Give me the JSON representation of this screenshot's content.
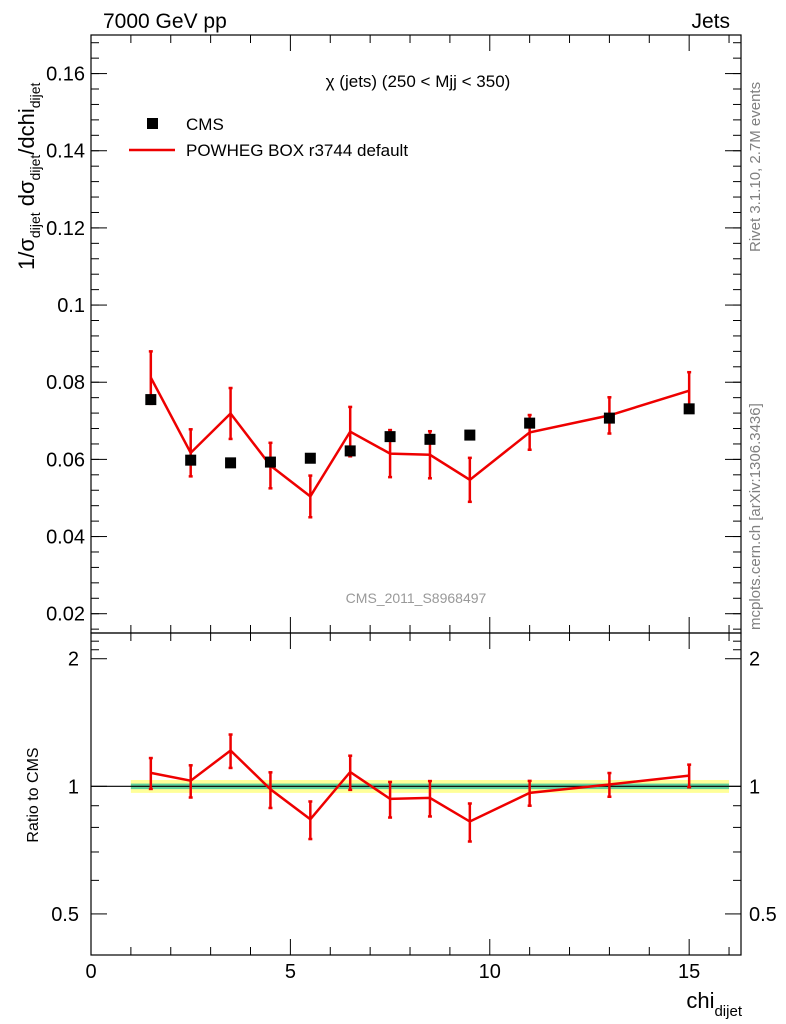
{
  "header": {
    "left": "7000 GeV pp",
    "right": "Jets"
  },
  "side_labels": {
    "rivet": "Rivet 3.1.10,  2.7M events",
    "mcplots": "mcplots.cern.ch [arXiv:1306.3436]"
  },
  "watermark": "CMS_2011_S8968497",
  "colors": {
    "data": "#000000",
    "mc": "#ee0000",
    "band_inner": "#5fd19c",
    "band_outer": "#ffff99"
  },
  "chart_data": [
    {
      "type": "scatter",
      "title": "χ (jets) (250 < Mjj <  350)",
      "ylabel_main": "1/σ",
      "ylabel_sub1": "dijet",
      "ylabel_mid": " dσ",
      "ylabel_sub2": "dijet",
      "ylabel_mid2": "/dchi",
      "ylabel_sub3": "dijet",
      "xlim": [
        0,
        16.3
      ],
      "ylim": [
        0.015,
        0.17
      ],
      "yticks": [
        0.02,
        0.04,
        0.06,
        0.08,
        0.1,
        0.12,
        0.14,
        0.16
      ],
      "ytick_labels": [
        "0.02",
        "0.04",
        "0.06",
        "0.08",
        "0.1",
        "0.12",
        "0.14",
        "0.16"
      ],
      "legend": {
        "position": "top-left",
        "entries": [
          "CMS",
          "POWHEG BOX r3744 default"
        ]
      },
      "series": [
        {
          "name": "CMS",
          "x": [
            1.5,
            2.5,
            3.5,
            4.5,
            5.5,
            6.5,
            7.5,
            8.5,
            9.5,
            11,
            13,
            15
          ],
          "y": [
            0.0755,
            0.0598,
            0.0591,
            0.0593,
            0.0603,
            0.0622,
            0.0659,
            0.0652,
            0.0663,
            0.0694,
            0.0707,
            0.0731
          ]
        },
        {
          "name": "POWHEG BOX r3744 default",
          "x": [
            1.5,
            2.5,
            3.5,
            4.5,
            5.5,
            6.5,
            7.5,
            8.5,
            9.5,
            11,
            13,
            15
          ],
          "y": [
            0.0812,
            0.0617,
            0.0719,
            0.0584,
            0.0504,
            0.0672,
            0.0615,
            0.0612,
            0.0547,
            0.067,
            0.0714,
            0.0778
          ],
          "err": [
            0.0068,
            0.0061,
            0.0066,
            0.0059,
            0.0054,
            0.0064,
            0.0061,
            0.0061,
            0.0057,
            0.0045,
            0.0047,
            0.0048
          ]
        }
      ]
    },
    {
      "type": "line",
      "ylabel": "Ratio to CMS",
      "xlabel_main": "chi",
      "xlabel_sub": "dijet",
      "xlim": [
        0,
        16.3
      ],
      "ylim": [
        0.4,
        2.3
      ],
      "ylog": true,
      "xticks": [
        0,
        5,
        10,
        15
      ],
      "xtick_labels": [
        "0",
        "5",
        "10",
        "15"
      ],
      "yticks": [
        0.5,
        1,
        2
      ],
      "ytick_labels": [
        "0.5",
        "1",
        "2"
      ],
      "band_x": [
        1,
        16
      ],
      "band_inner": [
        0.985,
        1.015
      ],
      "band_outer": [
        0.965,
        1.035
      ],
      "series": [
        {
          "name": "POWHEG BOX r3744 default / CMS",
          "x": [
            1.5,
            2.5,
            3.5,
            4.5,
            5.5,
            6.5,
            7.5,
            8.5,
            9.5,
            11,
            13,
            15
          ],
          "y": [
            1.076,
            1.031,
            1.215,
            0.984,
            0.836,
            1.081,
            0.934,
            0.939,
            0.826,
            0.965,
            1.01,
            1.06
          ],
          "err": [
            0.09,
            0.09,
            0.11,
            0.095,
            0.085,
            0.1,
            0.09,
            0.09,
            0.085,
            0.065,
            0.065,
            0.065
          ]
        }
      ]
    }
  ]
}
